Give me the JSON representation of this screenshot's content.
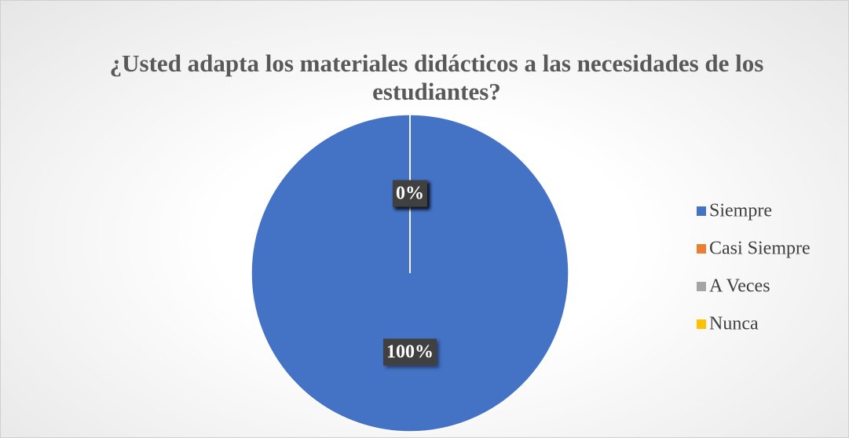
{
  "chart_data": {
    "type": "pie",
    "title": "¿Usted adapta los materiales didácticos a las necesidades de los estudiantes?",
    "categories": [
      "Siempre",
      "Casi Siempre",
      "A Veces",
      "Nunca"
    ],
    "values": [
      100,
      0,
      0,
      0
    ],
    "value_labels": [
      "100%",
      "0%",
      "0%",
      "0%"
    ],
    "colors": [
      "#4472c4",
      "#ed7d31",
      "#a5a5a5",
      "#ffc000"
    ],
    "legend": "right"
  }
}
